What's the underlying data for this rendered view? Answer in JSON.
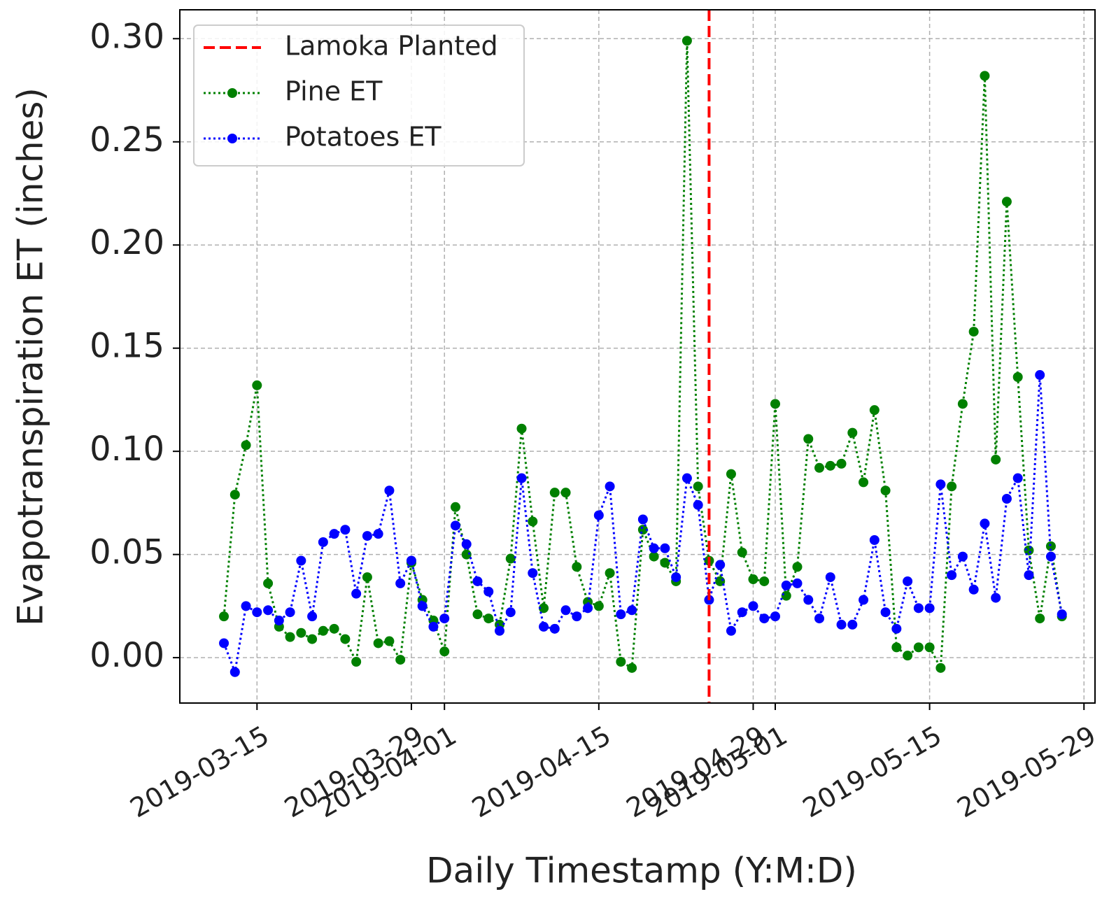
{
  "chart_data": {
    "type": "line",
    "x_label": "Daily Timestamp (Y:M:D)",
    "y_label": "Evapotranspiration ET (inches)",
    "x": [
      "2019-03-12",
      "2019-03-13",
      "2019-03-14",
      "2019-03-15",
      "2019-03-16",
      "2019-03-17",
      "2019-03-18",
      "2019-03-19",
      "2019-03-20",
      "2019-03-21",
      "2019-03-22",
      "2019-03-23",
      "2019-03-24",
      "2019-03-25",
      "2019-03-26",
      "2019-03-27",
      "2019-03-28",
      "2019-03-29",
      "2019-03-30",
      "2019-03-31",
      "2019-04-01",
      "2019-04-02",
      "2019-04-03",
      "2019-04-04",
      "2019-04-05",
      "2019-04-06",
      "2019-04-07",
      "2019-04-08",
      "2019-04-09",
      "2019-04-10",
      "2019-04-11",
      "2019-04-12",
      "2019-04-13",
      "2019-04-14",
      "2019-04-15",
      "2019-04-16",
      "2019-04-17",
      "2019-04-18",
      "2019-04-19",
      "2019-04-20",
      "2019-04-21",
      "2019-04-22",
      "2019-04-23",
      "2019-04-24",
      "2019-04-25",
      "2019-04-26",
      "2019-04-27",
      "2019-04-28",
      "2019-04-29",
      "2019-04-30",
      "2019-05-01",
      "2019-05-02",
      "2019-05-03",
      "2019-05-04",
      "2019-05-05",
      "2019-05-06",
      "2019-05-07",
      "2019-05-08",
      "2019-05-09",
      "2019-05-10",
      "2019-05-11",
      "2019-05-12",
      "2019-05-13",
      "2019-05-14",
      "2019-05-15",
      "2019-05-16",
      "2019-05-17",
      "2019-05-18",
      "2019-05-19",
      "2019-05-20",
      "2019-05-21",
      "2019-05-22",
      "2019-05-23",
      "2019-05-24",
      "2019-05-25",
      "2019-05-26",
      "2019-05-27"
    ],
    "series": [
      {
        "name": "Pine ET",
        "color": "#008000",
        "values": [
          0.02,
          0.079,
          0.103,
          0.132,
          0.036,
          0.015,
          0.01,
          0.012,
          0.009,
          0.013,
          0.014,
          0.009,
          -0.002,
          0.039,
          0.007,
          0.008,
          -0.001,
          0.046,
          0.028,
          0.018,
          0.003,
          0.073,
          0.05,
          0.021,
          0.019,
          0.016,
          0.048,
          0.111,
          0.066,
          0.024,
          0.08,
          0.08,
          0.044,
          0.027,
          0.025,
          0.041,
          -0.002,
          -0.005,
          0.062,
          0.049,
          0.046,
          0.037,
          0.299,
          0.083,
          0.047,
          0.037,
          0.089,
          0.051,
          0.038,
          0.037,
          0.123,
          0.03,
          0.044,
          0.106,
          0.092,
          0.093,
          0.094,
          0.109,
          0.085,
          0.12,
          0.081,
          0.005,
          0.001,
          0.005,
          0.005,
          -0.005,
          0.083,
          0.123,
          0.158,
          0.282,
          0.096,
          0.221,
          0.136,
          0.052,
          0.019,
          0.054,
          0.02
        ]
      },
      {
        "name": "Potatoes ET",
        "color": "#0000ff",
        "values": [
          0.007,
          -0.007,
          0.025,
          0.022,
          0.023,
          0.018,
          0.022,
          0.047,
          0.02,
          0.056,
          0.06,
          0.062,
          0.031,
          0.059,
          0.06,
          0.081,
          0.036,
          0.047,
          0.025,
          0.015,
          0.019,
          0.064,
          0.055,
          0.037,
          0.032,
          0.013,
          0.022,
          0.087,
          0.041,
          0.015,
          0.014,
          0.023,
          0.02,
          0.024,
          0.069,
          0.083,
          0.021,
          0.023,
          0.067,
          0.053,
          0.053,
          0.039,
          0.087,
          0.074,
          0.028,
          0.045,
          0.013,
          0.022,
          0.025,
          0.019,
          0.02,
          0.035,
          0.036,
          0.028,
          0.019,
          0.039,
          0.016,
          0.016,
          0.028,
          0.057,
          0.022,
          0.014,
          0.037,
          0.024,
          0.024,
          0.084,
          0.04,
          0.049,
          0.033,
          0.065,
          0.029,
          0.077,
          0.087,
          0.04,
          0.137,
          0.049,
          0.021
        ]
      }
    ],
    "vlines": [
      {
        "name": "Lamoka Planted",
        "x": "2019-04-25",
        "color": "#ff0000"
      }
    ],
    "xlim": [
      "2019-03-08",
      "2019-05-30"
    ],
    "xticks": [
      "2019-03-15",
      "2019-03-29",
      "2019-04-01",
      "2019-04-15",
      "2019-04-29",
      "2019-05-01",
      "2019-05-15",
      "2019-05-29"
    ],
    "ylim": [
      -0.022,
      0.314
    ],
    "yticks": [
      {
        "value": 0,
        "label": "0.00"
      },
      {
        "value": 0.05,
        "label": "0.05"
      },
      {
        "value": 0.1,
        "label": "0.10"
      },
      {
        "value": 0.15,
        "label": "0.15"
      },
      {
        "value": 0.2,
        "label": "0.20"
      },
      {
        "value": 0.25,
        "label": "0.25"
      },
      {
        "value": 0.3,
        "label": "0.30"
      }
    ],
    "grid": true,
    "legend": "upper left"
  }
}
